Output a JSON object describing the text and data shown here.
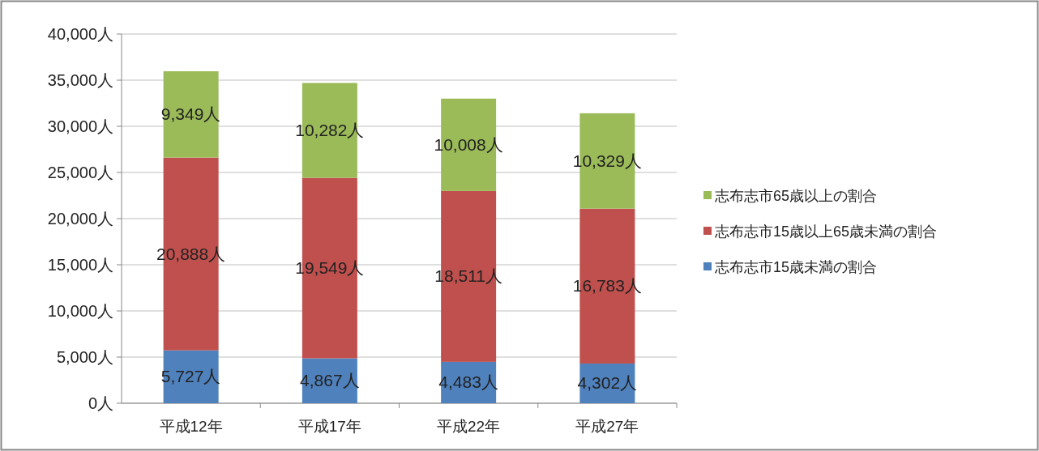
{
  "chart_data": {
    "type": "bar",
    "stacked": true,
    "categories": [
      "平成12年",
      "平成17年",
      "平成22年",
      "平成27年"
    ],
    "series": [
      {
        "name": "志布志市15歳未満の割合",
        "color": "#4f81bd",
        "values": [
          5727,
          4867,
          4483,
          4302
        ],
        "value_labels": [
          "5,727人",
          "4,867人",
          "4,483人",
          "4,302人"
        ]
      },
      {
        "name": "志布志市15歳以上65歳未満の割合",
        "color": "#c0504d",
        "values": [
          20888,
          19549,
          18511,
          16783
        ],
        "value_labels": [
          "20,888人",
          "19,549人",
          "18,511人",
          "16,783人"
        ]
      },
      {
        "name": "志布志市65歳以上の割合",
        "color": "#9bbb59",
        "values": [
          9349,
          10282,
          10008,
          10329
        ],
        "value_labels": [
          "9,349人",
          "10,282人",
          "10,008人",
          "10,329人"
        ]
      }
    ],
    "ylim": [
      0,
      40000
    ],
    "yticks": [
      {
        "value": 0,
        "label": "0人"
      },
      {
        "value": 5000,
        "label": "5,000人"
      },
      {
        "value": 10000,
        "label": "10,000人"
      },
      {
        "value": 15000,
        "label": "15,000人"
      },
      {
        "value": 20000,
        "label": "20,000人"
      },
      {
        "value": 25000,
        "label": "25,000人"
      },
      {
        "value": 30000,
        "label": "30,000人"
      },
      {
        "value": 35000,
        "label": "35,000人"
      },
      {
        "value": 40000,
        "label": "40,000人"
      }
    ],
    "grid": "y",
    "legend": "right"
  }
}
